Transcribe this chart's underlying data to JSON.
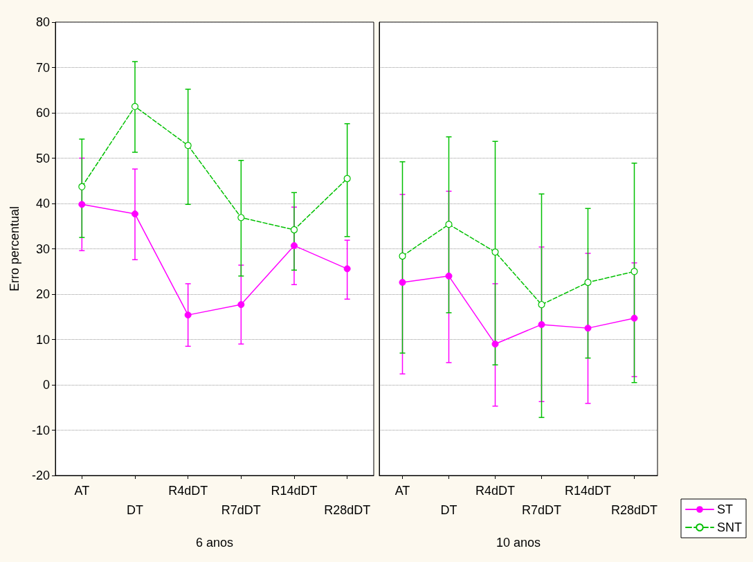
{
  "chart_data": [
    {
      "type": "line",
      "xlabel": "6 anos",
      "ylabel": "Erro percentual",
      "categories": [
        "AT",
        "DT",
        "R4dDT",
        "R7dDT",
        "R14dDT",
        "R28dDT"
      ],
      "ylim": [
        -20,
        80
      ],
      "yticks": [
        -20,
        -10,
        0,
        10,
        20,
        30,
        40,
        50,
        60,
        70,
        80
      ],
      "grid": "y",
      "marker": "circle",
      "legend": false,
      "series": [
        {
          "color": "#ff00ff",
          "line_style": "solid",
          "values": [
            39.8,
            37.7,
            15.4,
            17.7,
            30.7,
            25.6
          ],
          "errors": [
            [
              29.6,
              50.0
            ],
            [
              27.6,
              47.6
            ],
            [
              8.5,
              22.3
            ],
            [
              9.0,
              26.4
            ],
            [
              22.1,
              39.2
            ],
            [
              18.9,
              31.9
            ]
          ]
        },
        {
          "color": "#00c000",
          "line_style": "dashed",
          "values": [
            43.7,
            61.4,
            52.8,
            36.9,
            34.2,
            45.5
          ],
          "errors": [
            [
              32.5,
              54.2
            ],
            [
              51.3,
              71.3
            ],
            [
              39.8,
              65.2
            ],
            [
              24.0,
              49.5
            ],
            [
              25.3,
              42.4
            ],
            [
              32.7,
              57.6
            ]
          ]
        }
      ]
    },
    {
      "type": "line",
      "xlabel": "10 anos",
      "categories": [
        "AT",
        "DT",
        "R4dDT",
        "R7dDT",
        "R14dDT",
        "R28dDT"
      ],
      "ylim": [
        -20,
        80
      ],
      "yticks": [
        -20,
        -10,
        0,
        10,
        20,
        30,
        40,
        50,
        60,
        70,
        80
      ],
      "grid": "y",
      "marker": "circle",
      "legend": "bottom right",
      "tick_labels": "x",
      "series": [
        {
          "name": "ST",
          "color": "#ff00ff",
          "line_style": "solid",
          "values": [
            22.6,
            24.0,
            9.0,
            13.3,
            12.5,
            14.7
          ],
          "errors": [
            [
              2.4,
              42.0
            ],
            [
              4.9,
              42.7
            ],
            [
              -4.7,
              22.3
            ],
            [
              -3.7,
              30.4
            ],
            [
              -4.1,
              29.0
            ],
            [
              1.8,
              26.9
            ]
          ]
        },
        {
          "name": "SNT",
          "color": "#00c000",
          "line_style": "dashed",
          "values": [
            28.4,
            35.4,
            29.3,
            17.7,
            22.6,
            25.0
          ],
          "errors": [
            [
              7.0,
              49.2
            ],
            [
              15.9,
              54.7
            ],
            [
              4.4,
              53.7
            ],
            [
              -7.2,
              42.1
            ],
            [
              5.9,
              38.9
            ],
            [
              0.5,
              48.9
            ]
          ]
        }
      ]
    }
  ]
}
